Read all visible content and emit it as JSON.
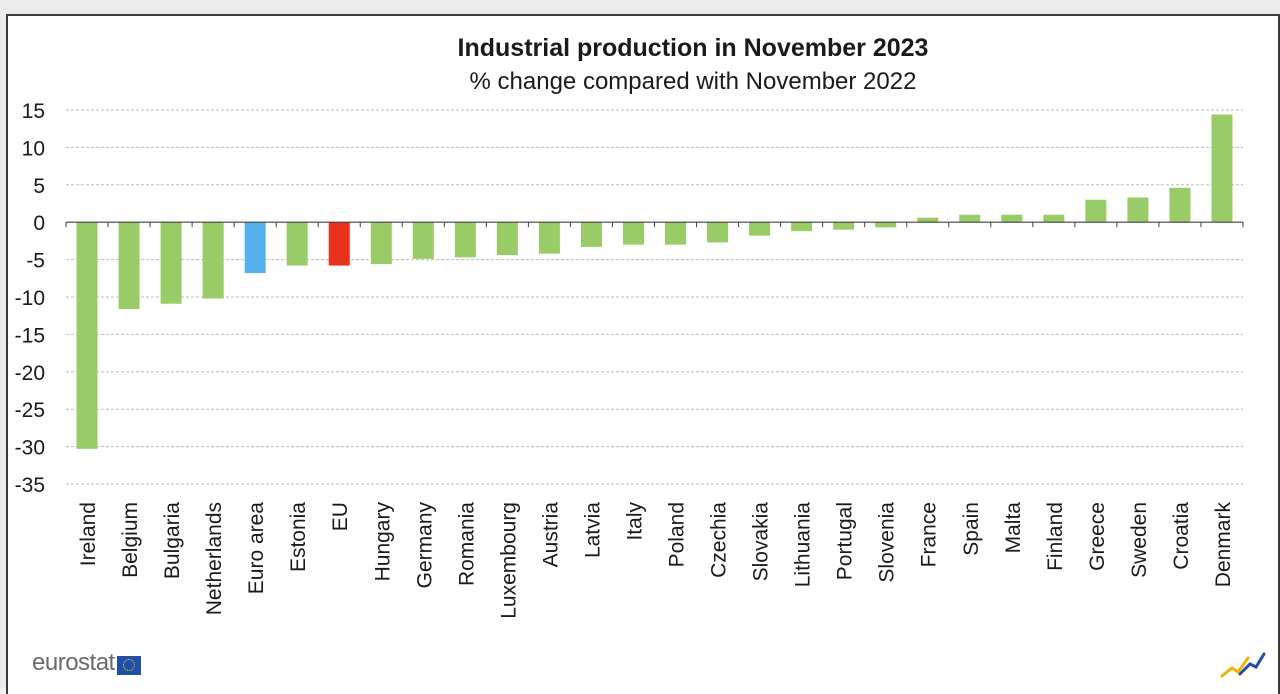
{
  "brand": {
    "name": "eurostat"
  },
  "chart_data": {
    "type": "bar",
    "title": "Industrial production  in November 2023",
    "subtitle": "% change compared with November 2022",
    "xlabel": "",
    "ylabel": "",
    "ylim": [
      -35,
      15
    ],
    "yticks": [
      15,
      10,
      5,
      0,
      -5,
      -10,
      -15,
      -20,
      -25,
      -30,
      -35
    ],
    "grid": true,
    "categories": [
      "Ireland",
      "Belgium",
      "Bulgaria",
      "Netherlands",
      "Euro area",
      "Estonia",
      "EU",
      "Hungary",
      "Germany",
      "Romania",
      "Luxembourg",
      "Austria",
      "Latvia",
      "Italy",
      "Poland",
      "Czechia",
      "Slovakia",
      "Lithuania",
      "Portugal",
      "Slovenia",
      "France",
      "Spain",
      "Malta",
      "Finland",
      "Greece",
      "Sweden",
      "Croatia",
      "Denmark"
    ],
    "values": [
      -30.3,
      -11.6,
      -10.9,
      -10.2,
      -6.8,
      -5.8,
      -5.8,
      -5.6,
      -4.9,
      -4.7,
      -4.4,
      -4.2,
      -3.3,
      -3.0,
      -3.0,
      -2.7,
      -1.8,
      -1.2,
      -1.0,
      -0.7,
      0.6,
      1.0,
      1.0,
      1.0,
      3.0,
      3.3,
      4.6,
      14.4
    ],
    "colors": {
      "default": "#99cc66",
      "Euro area": "#55b1ec",
      "EU": "#e8321e"
    }
  }
}
